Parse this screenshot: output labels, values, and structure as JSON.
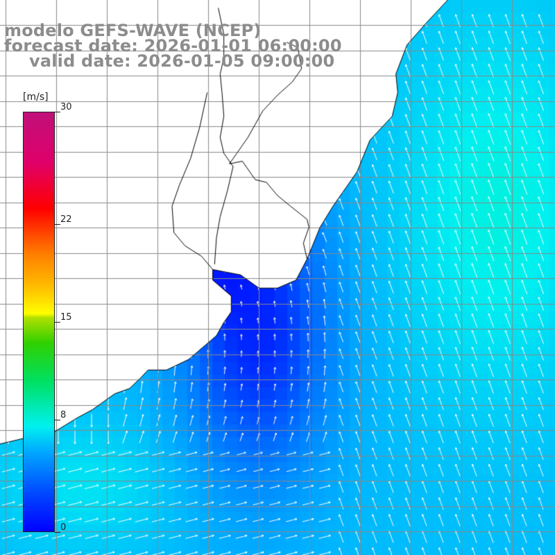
{
  "title": {
    "line1": "modelo GEFS-WAVE (NCEP)",
    "line2": "forecast date: 2026-01-01 06:00:00",
    "line3": "valid date: 2026-01-05 09:00:00"
  },
  "colorbar": {
    "units": "[m/s]",
    "min": 0,
    "max": 30,
    "ticks": [
      {
        "value": 0,
        "label": "0"
      },
      {
        "value": 8,
        "label": "8"
      },
      {
        "value": 15,
        "label": "15"
      },
      {
        "value": 22,
        "label": "22"
      },
      {
        "value": 30,
        "label": "30"
      }
    ]
  },
  "colors": {
    "land": "#ffffff",
    "grid": "#888888",
    "coast": "#000000",
    "arrow": "#ffffff",
    "title": "#8c8c8c"
  },
  "map": {
    "variable": "wind speed and direction",
    "projection": "lat-lon",
    "lon_range": [
      -70,
      -40
    ],
    "lat_range": [
      -45,
      -24
    ],
    "coastline_lonlat": [
      [
        -70,
        -40.8
      ],
      [
        -68.8,
        -40.6
      ],
      [
        -67.2,
        -40.4
      ],
      [
        -66.5,
        -40.1
      ],
      [
        -65.8,
        -39.8
      ],
      [
        -65.0,
        -39.5
      ],
      [
        -63.8,
        -38.9
      ],
      [
        -63.0,
        -38.7
      ],
      [
        -62.4,
        -38.3
      ],
      [
        -62.0,
        -38.0
      ],
      [
        -61.0,
        -38.0
      ],
      [
        -59.8,
        -37.6
      ],
      [
        -58.3,
        -36.7
      ],
      [
        -57.9,
        -36.2
      ],
      [
        -57.5,
        -35.8
      ],
      [
        -57.5,
        -35.2
      ],
      [
        -58.5,
        -34.6
      ],
      [
        -58.5,
        -34.2
      ],
      [
        -57.0,
        -34.4
      ],
      [
        -56.0,
        -34.9
      ],
      [
        -55.0,
        -34.9
      ],
      [
        -54.0,
        -34.6
      ],
      [
        -53.4,
        -33.8
      ],
      [
        -52.7,
        -32.6
      ],
      [
        -52.0,
        -31.8
      ],
      [
        -50.7,
        -30.5
      ],
      [
        -50.0,
        -29.3
      ],
      [
        -48.8,
        -28.4
      ],
      [
        -48.5,
        -27.5
      ],
      [
        -48.6,
        -26.8
      ],
      [
        -48.0,
        -25.7
      ],
      [
        -47.0,
        -24.9
      ],
      [
        -45.8,
        -24.0
      ]
    ],
    "rio_uruguay_lonlat": [
      [
        -58.4,
        -34.0
      ],
      [
        -58.3,
        -33.0
      ],
      [
        -58.1,
        -32.2
      ],
      [
        -57.7,
        -31.2
      ],
      [
        -57.4,
        -30.3
      ],
      [
        -57.9,
        -29.8
      ],
      [
        -58.1,
        -29.2
      ],
      [
        -57.9,
        -28.4
      ],
      [
        -58.0,
        -27.5
      ],
      [
        -58.1,
        -26.8
      ],
      [
        -57.9,
        -26.2
      ],
      [
        -57.9,
        -25.3
      ],
      [
        -58.2,
        -24.3
      ]
    ],
    "border_br_uy_lonlat": [
      [
        -57.6,
        -30.2
      ],
      [
        -56.9,
        -30.1
      ],
      [
        -56.2,
        -30.8
      ],
      [
        -55.6,
        -30.9
      ],
      [
        -55.0,
        -31.4
      ],
      [
        -54.3,
        -31.8
      ],
      [
        -53.4,
        -32.3
      ],
      [
        -53.3,
        -32.6
      ],
      [
        -53.6,
        -33.2
      ],
      [
        -53.4,
        -33.8
      ]
    ],
    "border_br_ar_lonlat": [
      [
        -57.6,
        -30.2
      ],
      [
        -56.6,
        -29.2
      ],
      [
        -55.8,
        -28.2
      ],
      [
        -55.0,
        -27.6
      ],
      [
        -54.2,
        -27.1
      ],
      [
        -53.7,
        -26.6
      ],
      [
        -53.9,
        -25.8
      ],
      [
        -54.5,
        -25.6
      ]
    ],
    "parana_lonlat": [
      [
        -58.5,
        -34.2
      ],
      [
        -59.1,
        -33.7
      ],
      [
        -60.0,
        -33.3
      ],
      [
        -60.6,
        -32.8
      ],
      [
        -60.7,
        -31.8
      ],
      [
        -60.3,
        -31.0
      ],
      [
        -59.7,
        -30.0
      ],
      [
        -59.2,
        -28.8
      ],
      [
        -58.8,
        -27.5
      ]
    ]
  }
}
